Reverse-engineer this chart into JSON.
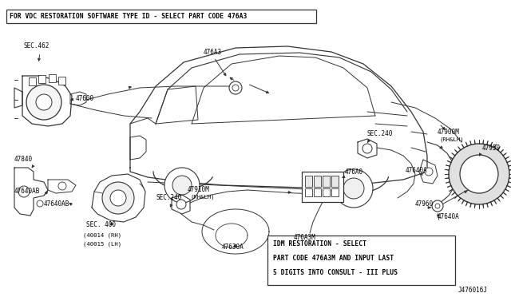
{
  "bg_color": "#ffffff",
  "line_color": "#333333",
  "text_color": "#000000",
  "top_note": "FOR VDC RESTORATION SOFTWARE TYPE ID - SELECT PART CODE 476A3",
  "bottom_note_lines": [
    "IDM RESTORATION - SELECT",
    "PART CODE 476A3M AND INPUT LAST",
    "5 DIGITS INTO CONSULT - III PLUS"
  ],
  "diagram_ref": "J476016J",
  "figsize": [
    6.4,
    3.72
  ],
  "dpi": 100
}
